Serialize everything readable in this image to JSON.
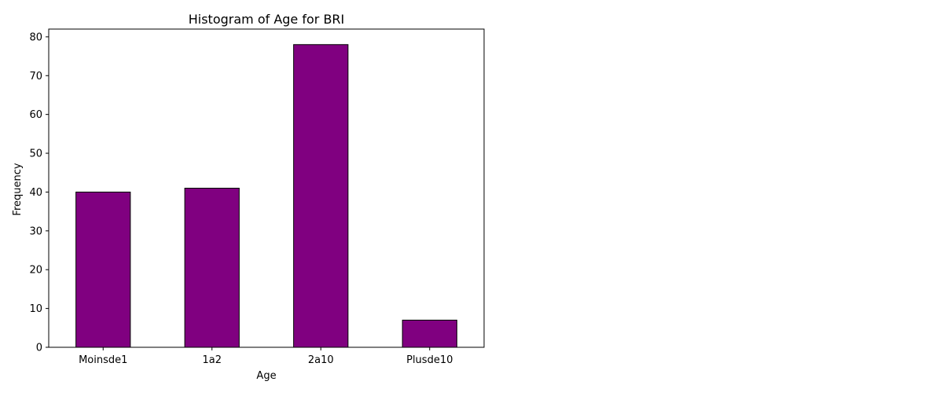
{
  "chart_data": {
    "type": "bar",
    "title": "Histogram of Age for BRI",
    "xlabel": "Age",
    "ylabel": "Frequency",
    "categories": [
      "Moinsde1",
      "1a2",
      "2a10",
      "Plusde10"
    ],
    "values": [
      40,
      41,
      78,
      7
    ],
    "ylim": [
      0,
      82
    ],
    "yticks": [
      0,
      10,
      20,
      30,
      40,
      50,
      60,
      70,
      80
    ],
    "grid": false,
    "legend": "none",
    "bar_color": "#800080",
    "edge_color": "#000000"
  }
}
